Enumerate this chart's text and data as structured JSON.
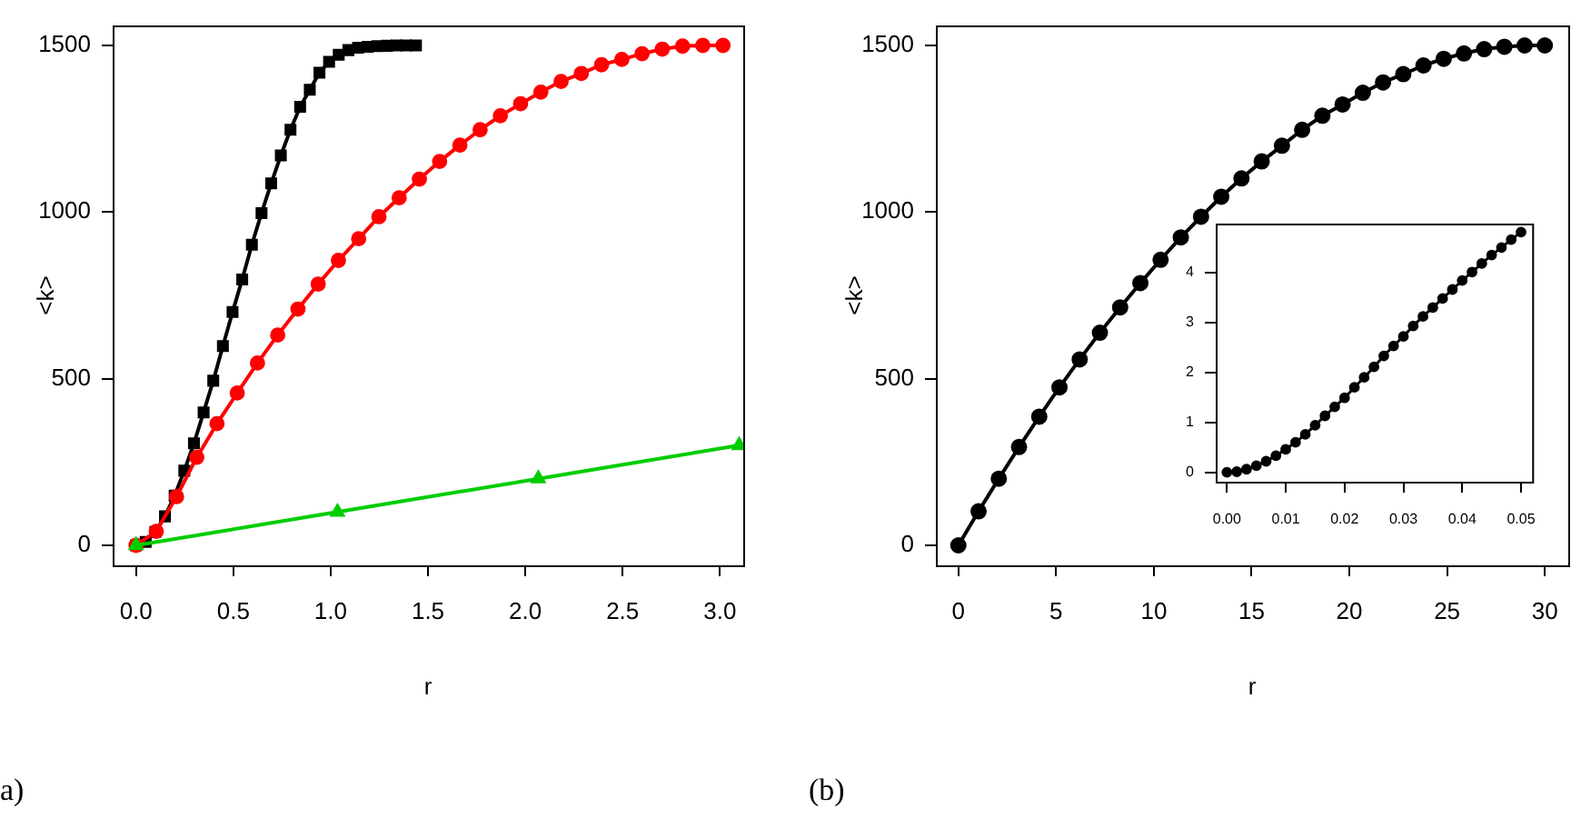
{
  "chart_data": [
    {
      "type": "line",
      "xlabel": "r",
      "ylabel": "<k>",
      "xlim": [
        -0.12,
        3.12
      ],
      "ylim": [
        -60,
        1560
      ],
      "xticks": [
        {
          "value": 0,
          "label": "0.0"
        },
        {
          "value": 0.5,
          "label": "0.5"
        },
        {
          "value": 1,
          "label": "1.0"
        },
        {
          "value": 1.5,
          "label": "1.5"
        },
        {
          "value": 2,
          "label": "2.0"
        },
        {
          "value": 2.5,
          "label": "2.5"
        },
        {
          "value": 3,
          "label": "3.0"
        }
      ],
      "yticks": [
        0,
        500,
        1000,
        1500
      ],
      "annotations": [
        "a)"
      ],
      "series": [
        {
          "color": "#000000",
          "marker": "square",
          "x": [
            0,
            0.0496,
            0.0992,
            0.1488,
            0.1984,
            0.248,
            0.2976,
            0.3472,
            0.3968,
            0.4464,
            0.496,
            0.5456,
            0.5952,
            0.6448,
            0.6944,
            0.744,
            0.7936,
            0.8432,
            0.8928,
            0.9424,
            0.992,
            1.0416,
            1.0912,
            1.1408,
            1.1904,
            1.24,
            1.2896,
            1.3392,
            1.3888,
            1.4384
          ],
          "values": [
            0,
            10,
            40,
            87,
            149,
            224,
            306,
            399,
            494,
            598,
            700,
            798,
            902,
            997,
            1086,
            1170,
            1247,
            1316,
            1367,
            1418,
            1451,
            1472,
            1486,
            1493,
            1496,
            1498,
            1499,
            1500,
            1500,
            1500
          ]
        },
        {
          "color": "#ff0000",
          "marker": "circle",
          "x": [
            0,
            0.104,
            0.208,
            0.312,
            0.416,
            0.52,
            0.624,
            0.728,
            0.832,
            0.936,
            1.04,
            1.144,
            1.248,
            1.352,
            1.456,
            1.56,
            1.664,
            1.768,
            1.872,
            1.976,
            2.08,
            2.184,
            2.288,
            2.392,
            2.496,
            2.6,
            2.704,
            2.808,
            2.912,
            3.016
          ],
          "values": [
            0,
            42,
            146,
            264,
            365,
            457,
            547,
            631,
            709,
            784,
            855,
            920,
            986,
            1043,
            1099,
            1152,
            1201,
            1247,
            1289,
            1325,
            1360,
            1392,
            1416,
            1442,
            1458,
            1475,
            1489,
            1498,
            1500,
            1500
          ]
        },
        {
          "color": "#00cd00",
          "marker": "triangle",
          "x": [
            0,
            1.035,
            2.067,
            3.099
          ],
          "values": [
            0,
            100,
            200,
            300
          ]
        }
      ]
    },
    {
      "type": "line",
      "xlabel": "r",
      "ylabel": "<k>",
      "xlim": [
        -1.15,
        31.2
      ],
      "ylim": [
        -60,
        1560
      ],
      "xticks": [
        0,
        5,
        10,
        15,
        20,
        25,
        30
      ],
      "yticks": [
        0,
        500,
        1000,
        1500
      ],
      "annotations": [
        "(b)"
      ],
      "series": [
        {
          "color": "#000000",
          "marker": "circle",
          "x": [
            0,
            1.034,
            2.069,
            3.103,
            4.138,
            5.172,
            6.207,
            7.241,
            8.276,
            9.31,
            10.345,
            11.379,
            12.414,
            13.448,
            14.483,
            15.517,
            16.552,
            17.586,
            18.621,
            19.655,
            20.69,
            21.724,
            22.759,
            23.793,
            24.828,
            25.862,
            26.897,
            27.931,
            28.966,
            30
          ],
          "values": [
            0,
            102,
            200,
            295,
            386,
            474,
            558,
            638,
            714,
            787,
            857,
            924,
            986,
            1046,
            1101,
            1152,
            1199,
            1247,
            1289,
            1323,
            1358,
            1389,
            1414,
            1440,
            1460,
            1476,
            1489,
            1496,
            1500,
            1500
          ]
        }
      ]
    },
    {
      "type": "line",
      "xlim": [
        -0.0019,
        0.0519
      ],
      "ylim": [
        -0.19,
        4.98
      ],
      "xticks": [
        {
          "value": 0,
          "label": "0.00"
        },
        {
          "value": 0.01,
          "label": "0.01"
        },
        {
          "value": 0.02,
          "label": "0.02"
        },
        {
          "value": 0.03,
          "label": "0.03"
        },
        {
          "value": 0.04,
          "label": "0.04"
        },
        {
          "value": 0.05,
          "label": "0.05"
        }
      ],
      "yticks": [
        0,
        1,
        2,
        3,
        4
      ],
      "series": [
        {
          "color": "#000000",
          "marker": "circle",
          "x": [
            0,
            0.00167,
            0.00333,
            0.005,
            0.00667,
            0.00833,
            0.01,
            0.01167,
            0.01333,
            0.015,
            0.01667,
            0.01833,
            0.02,
            0.02167,
            0.02333,
            0.025,
            0.02667,
            0.02833,
            0.03,
            0.03167,
            0.03333,
            0.035,
            0.03667,
            0.03833,
            0.04,
            0.04167,
            0.04333,
            0.045,
            0.04667,
            0.04833,
            0.05
          ],
          "values": [
            0,
            0.01,
            0.06,
            0.13,
            0.22,
            0.33,
            0.46,
            0.6,
            0.76,
            0.94,
            1.13,
            1.31,
            1.49,
            1.7,
            1.9,
            2.11,
            2.33,
            2.53,
            2.72,
            2.93,
            3.12,
            3.3,
            3.48,
            3.66,
            3.84,
            4.01,
            4.18,
            4.35,
            4.5,
            4.66,
            4.81
          ]
        }
      ]
    }
  ]
}
